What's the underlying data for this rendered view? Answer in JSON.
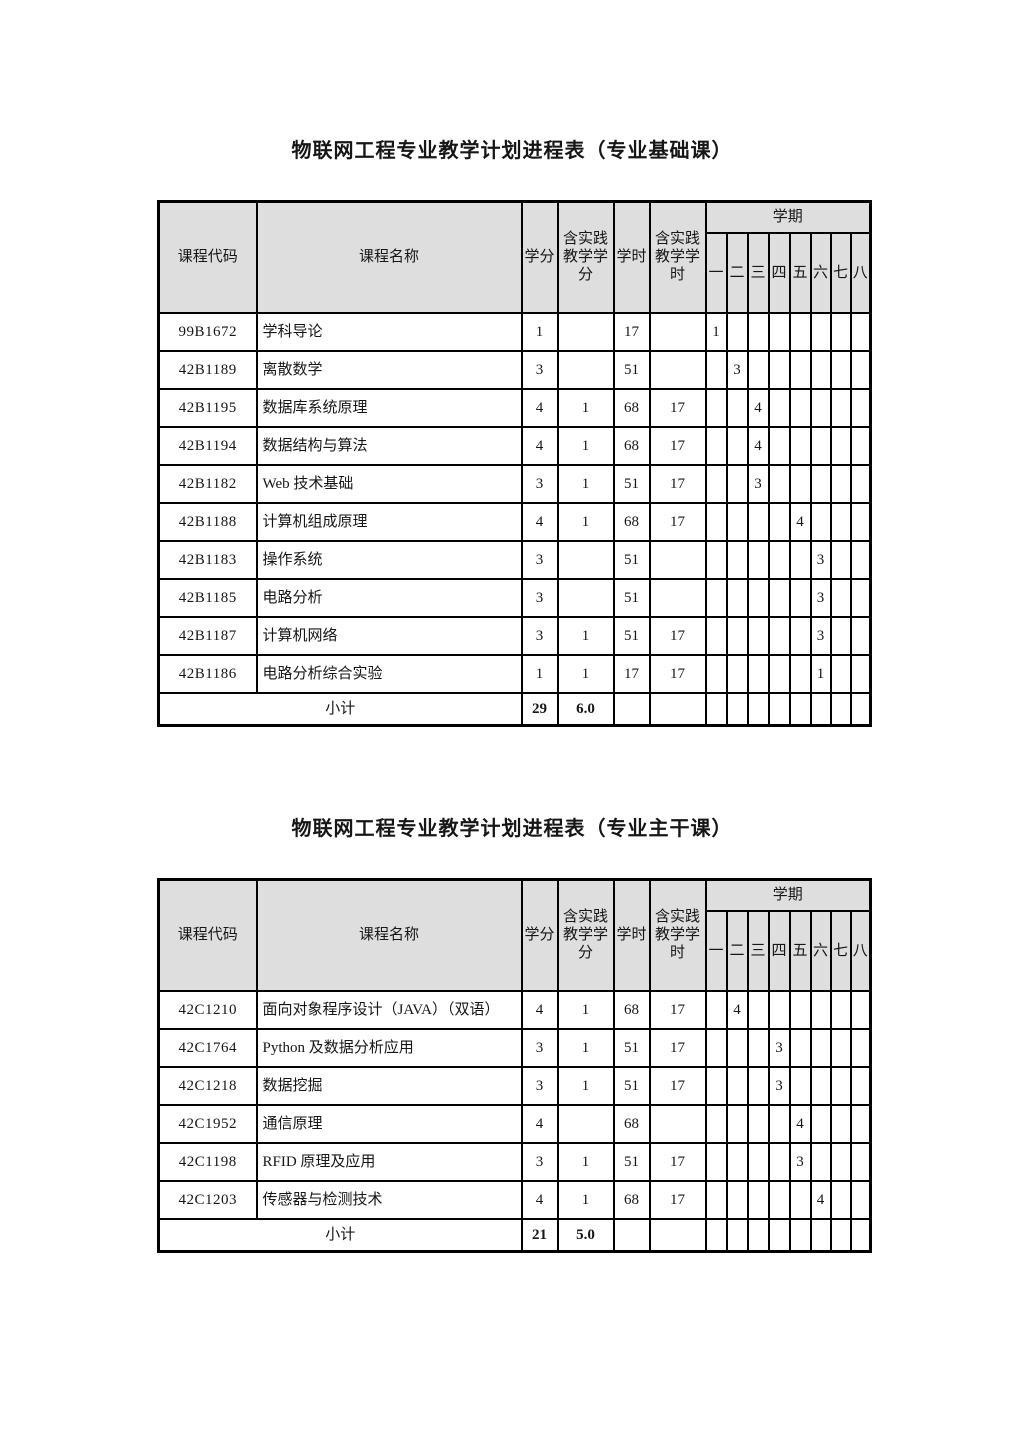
{
  "colors": {
    "header_bg": "#dedede",
    "border": "#000000",
    "page_bg": "#ffffff"
  },
  "tables": [
    {
      "title": "物联网工程专业教学计划进程表（专业基础课）",
      "header": {
        "course_code": "课程代码",
        "course_name": "课程名称",
        "credits": "学分",
        "practice_credits": "含实践教学学分",
        "hours": "学时",
        "practice_hours": "含实践教学学时",
        "semester": "学期",
        "semester_cols": [
          "一",
          "二",
          "三",
          "四",
          "五",
          "六",
          "七",
          "八"
        ]
      },
      "rows": [
        {
          "code": "99B1672",
          "name": "学科导论",
          "credits": "1",
          "practice_credits": "",
          "hours": "17",
          "practice_hours": "",
          "semesters": [
            "1",
            "",
            "",
            "",
            "",
            "",
            "",
            ""
          ]
        },
        {
          "code": "42B1189",
          "name": "离散数学",
          "credits": "3",
          "practice_credits": "",
          "hours": "51",
          "practice_hours": "",
          "semesters": [
            "",
            "3",
            "",
            "",
            "",
            "",
            "",
            ""
          ]
        },
        {
          "code": "42B1195",
          "name": "数据库系统原理",
          "credits": "4",
          "practice_credits": "1",
          "hours": "68",
          "practice_hours": "17",
          "semesters": [
            "",
            "",
            "4",
            "",
            "",
            "",
            "",
            ""
          ]
        },
        {
          "code": "42B1194",
          "name": "数据结构与算法",
          "credits": "4",
          "practice_credits": "1",
          "hours": "68",
          "practice_hours": "17",
          "semesters": [
            "",
            "",
            "4",
            "",
            "",
            "",
            "",
            ""
          ]
        },
        {
          "code": "42B1182",
          "name": "Web 技术基础",
          "credits": "3",
          "practice_credits": "1",
          "hours": "51",
          "practice_hours": "17",
          "semesters": [
            "",
            "",
            "3",
            "",
            "",
            "",
            "",
            ""
          ]
        },
        {
          "code": "42B1188",
          "name": "计算机组成原理",
          "credits": "4",
          "practice_credits": "1",
          "hours": "68",
          "practice_hours": "17",
          "semesters": [
            "",
            "",
            "",
            "",
            "4",
            "",
            "",
            ""
          ]
        },
        {
          "code": "42B1183",
          "name": "操作系统",
          "credits": "3",
          "practice_credits": "",
          "hours": "51",
          "practice_hours": "",
          "semesters": [
            "",
            "",
            "",
            "",
            "",
            "3",
            "",
            ""
          ]
        },
        {
          "code": "42B1185",
          "name": "电路分析",
          "credits": "3",
          "practice_credits": "",
          "hours": "51",
          "practice_hours": "",
          "semesters": [
            "",
            "",
            "",
            "",
            "",
            "3",
            "",
            ""
          ]
        },
        {
          "code": "42B1187",
          "name": "计算机网络",
          "credits": "3",
          "practice_credits": "1",
          "hours": "51",
          "practice_hours": "17",
          "semesters": [
            "",
            "",
            "",
            "",
            "",
            "3",
            "",
            ""
          ]
        },
        {
          "code": "42B1186",
          "name": "电路分析综合实验",
          "credits": "1",
          "practice_credits": "1",
          "hours": "17",
          "practice_hours": "17",
          "semesters": [
            "",
            "",
            "",
            "",
            "",
            "1",
            "",
            ""
          ]
        }
      ],
      "subtotal": {
        "label": "小计",
        "credits": "29",
        "practice_credits": "6.0",
        "hours": "",
        "practice_hours": "",
        "semesters": [
          "",
          "",
          "",
          "",
          "",
          "",
          "",
          ""
        ]
      }
    },
    {
      "title": "物联网工程专业教学计划进程表（专业主干课）",
      "header": {
        "course_code": "课程代码",
        "course_name": "课程名称",
        "credits": "学分",
        "practice_credits": "含实践教学学分",
        "hours": "学时",
        "practice_hours": "含实践教学学时",
        "semester": "学期",
        "semester_cols": [
          "一",
          "二",
          "三",
          "四",
          "五",
          "六",
          "七",
          "八"
        ]
      },
      "rows": [
        {
          "code": "42C1210",
          "name": "面向对象程序设计（JAVA）（双语）",
          "credits": "4",
          "practice_credits": "1",
          "hours": "68",
          "practice_hours": "17",
          "semesters": [
            "",
            "4",
            "",
            "",
            "",
            "",
            "",
            ""
          ]
        },
        {
          "code": "42C1764",
          "name": "Python 及数据分析应用",
          "credits": "3",
          "practice_credits": "1",
          "hours": "51",
          "practice_hours": "17",
          "semesters": [
            "",
            "",
            "",
            "3",
            "",
            "",
            "",
            ""
          ]
        },
        {
          "code": "42C1218",
          "name": "数据挖掘",
          "credits": "3",
          "practice_credits": "1",
          "hours": "51",
          "practice_hours": "17",
          "semesters": [
            "",
            "",
            "",
            "3",
            "",
            "",
            "",
            ""
          ]
        },
        {
          "code": "42C1952",
          "name": "通信原理",
          "credits": "4",
          "practice_credits": "",
          "hours": "68",
          "practice_hours": "",
          "semesters": [
            "",
            "",
            "",
            "",
            "4",
            "",
            "",
            ""
          ]
        },
        {
          "code": "42C1198",
          "name": "RFID 原理及应用",
          "credits": "3",
          "practice_credits": "1",
          "hours": "51",
          "practice_hours": "17",
          "semesters": [
            "",
            "",
            "",
            "",
            "3",
            "",
            "",
            ""
          ]
        },
        {
          "code": "42C1203",
          "name": "传感器与检测技术",
          "credits": "4",
          "practice_credits": "1",
          "hours": "68",
          "practice_hours": "17",
          "semesters": [
            "",
            "",
            "",
            "",
            "",
            "4",
            "",
            ""
          ]
        }
      ],
      "subtotal": {
        "label": "小计",
        "credits": "21",
        "practice_credits": "5.0",
        "hours": "",
        "practice_hours": "",
        "semesters": [
          "",
          "",
          "",
          "",
          "",
          "",
          "",
          ""
        ]
      }
    }
  ]
}
